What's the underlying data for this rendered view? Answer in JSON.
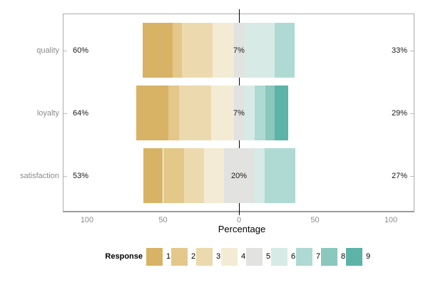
{
  "chart_data": {
    "type": "diverging_stacked_bar",
    "xlabel": "Percentage",
    "x_tick_labels": [
      "100",
      "50",
      "0",
      "50",
      "100"
    ],
    "x_tick_values": [
      -100,
      -50,
      0,
      50,
      100
    ],
    "minor_grid_values": [
      -75,
      -25,
      25,
      75
    ],
    "axis_range": [
      -116,
      116
    ],
    "categories": [
      "quality",
      "loyalty",
      "satisfaction"
    ],
    "rows": [
      {
        "category": "quality",
        "negative": [
          20,
          6,
          20,
          14
        ],
        "neutral": 7,
        "positive": [
          20,
          13,
          0,
          0
        ],
        "labels": {
          "negative": "60%",
          "neutral": "7%",
          "positive": "33%"
        }
      },
      {
        "category": "loyalty",
        "negative": [
          21,
          7,
          21,
          15
        ],
        "neutral": 7,
        "positive": [
          7,
          7,
          6,
          9
        ],
        "labels": {
          "negative": "64%",
          "neutral": "7%",
          "positive": "29%"
        }
      },
      {
        "category": "satisfaction",
        "negative": [
          13,
          14,
          13,
          13
        ],
        "neutral": 20,
        "positive": [
          7,
          20,
          0,
          0
        ],
        "labels": {
          "negative": "53%",
          "neutral": "20%",
          "positive": "27%"
        }
      }
    ],
    "legend": {
      "title": "Response",
      "labels": [
        "1",
        "2",
        "3",
        "4",
        "5",
        "6",
        "7",
        "8",
        "9"
      ]
    },
    "palette": [
      "#d8b365",
      "#e3c88a",
      "#ecdaae",
      "#f3ebd3",
      "#e2e2e1",
      "#d8eae6",
      "#aedad3",
      "#8ac7bd",
      "#5cb3a7"
    ],
    "colors": {
      "zero_line": "#000000",
      "panel_border": "#ababab",
      "axis_line": "#9c9c9c",
      "grid_major": "#e2e2e2",
      "grid_minor": "#efefef",
      "tick_text": "#8c8c8c",
      "category_text": "#8c8c8c",
      "value_text": "#1a1a1a"
    }
  }
}
